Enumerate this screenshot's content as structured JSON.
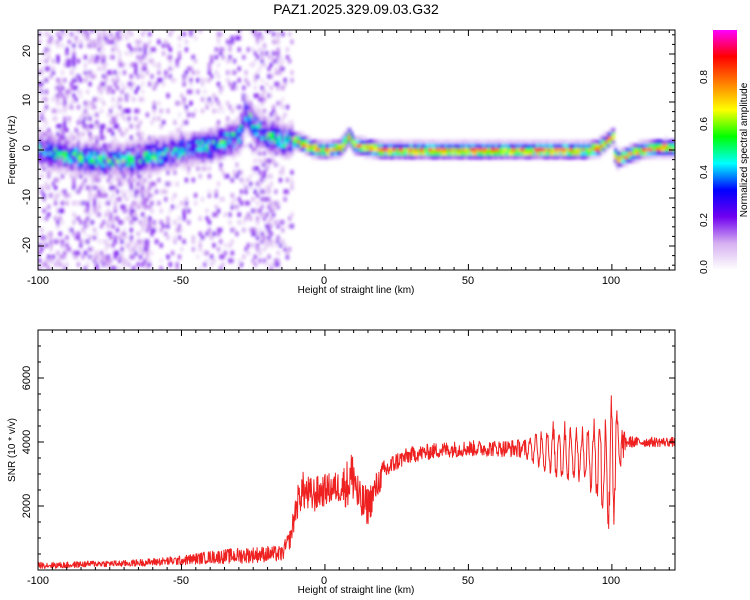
{
  "title": "PAZ1.2025.329.09.03.G32",
  "chart_data": [
    {
      "type": "heatmap",
      "xlabel": "Height of straight line (km)",
      "ylabel": "Frequency (Hz)",
      "xlim": [
        -100,
        122
      ],
      "ylim": [
        -25,
        25
      ],
      "xticks": [
        "-100",
        "-50",
        "0",
        "50",
        "100"
      ],
      "yticks": [
        "-20",
        "-10",
        "0",
        "10",
        "20"
      ],
      "ridge_x": [
        -100,
        -90,
        -80,
        -70,
        -60,
        -50,
        -40,
        -35,
        -30,
        -28,
        -25,
        -20,
        -15,
        -10,
        -5,
        0,
        5,
        8,
        10,
        15,
        20,
        30,
        40,
        50,
        60,
        70,
        80,
        90,
        95,
        100,
        101,
        105,
        110,
        115,
        122
      ],
      "ridge_freq": [
        0,
        -1,
        -2,
        -2,
        -1,
        0,
        1,
        2,
        3,
        8,
        5,
        3,
        2,
        2,
        0.5,
        0,
        0.5,
        3,
        1,
        0.5,
        0,
        0,
        0,
        0,
        0,
        0,
        0,
        0,
        0.5,
        3,
        -2,
        -1,
        0,
        0.5,
        0.5
      ],
      "colorbar": {
        "label": "Normalized spectral amplitude",
        "range": [
          0,
          1
        ],
        "ticks": [
          "0.0",
          "0.2",
          "0.4",
          "0.6",
          "0.8"
        ],
        "colors": [
          "#ffffff",
          "#d6b0f0",
          "#7000f0",
          "#0000ff",
          "#00ffff",
          "#00ff00",
          "#ffff00",
          "#ff8000",
          "#ff0000",
          "#ff00ff"
        ]
      }
    },
    {
      "type": "line",
      "xlabel": "Height of straight line (km)",
      "ylabel": "SNR (10 * v/v)",
      "xlim": [
        -100,
        122
      ],
      "ylim": [
        0,
        7500
      ],
      "xticks": [
        "-100",
        "-50",
        "0",
        "50",
        "100"
      ],
      "yticks": [
        "2000",
        "4000",
        "6000"
      ],
      "color": "#ee2020",
      "x": [
        -100,
        -90,
        -80,
        -70,
        -60,
        -50,
        -40,
        -30,
        -20,
        -15,
        -12,
        -10,
        -8,
        -5,
        0,
        5,
        8,
        10,
        12,
        15,
        20,
        25,
        30,
        40,
        50,
        60,
        70,
        75,
        80,
        85,
        90,
        95,
        98,
        100,
        101,
        102,
        105,
        110,
        115,
        122
      ],
      "values": [
        150,
        150,
        200,
        200,
        250,
        300,
        400,
        450,
        500,
        500,
        1000,
        2000,
        2500,
        2300,
        2500,
        2600,
        2700,
        3000,
        2100,
        2000,
        3000,
        3400,
        3600,
        3750,
        3800,
        3800,
        3800,
        3750,
        3700,
        3650,
        3600,
        3500,
        3000,
        3400,
        3600,
        3800,
        4000,
        4000,
        4000,
        4000
      ],
      "noise": [
        100,
        100,
        100,
        100,
        120,
        150,
        200,
        250,
        250,
        250,
        300,
        500,
        600,
        600,
        500,
        500,
        800,
        900,
        700,
        600,
        400,
        300,
        250,
        250,
        250,
        250,
        300,
        600,
        900,
        900,
        800,
        1500,
        2000,
        2500,
        2500,
        1000,
        200,
        150,
        150,
        150
      ]
    }
  ]
}
